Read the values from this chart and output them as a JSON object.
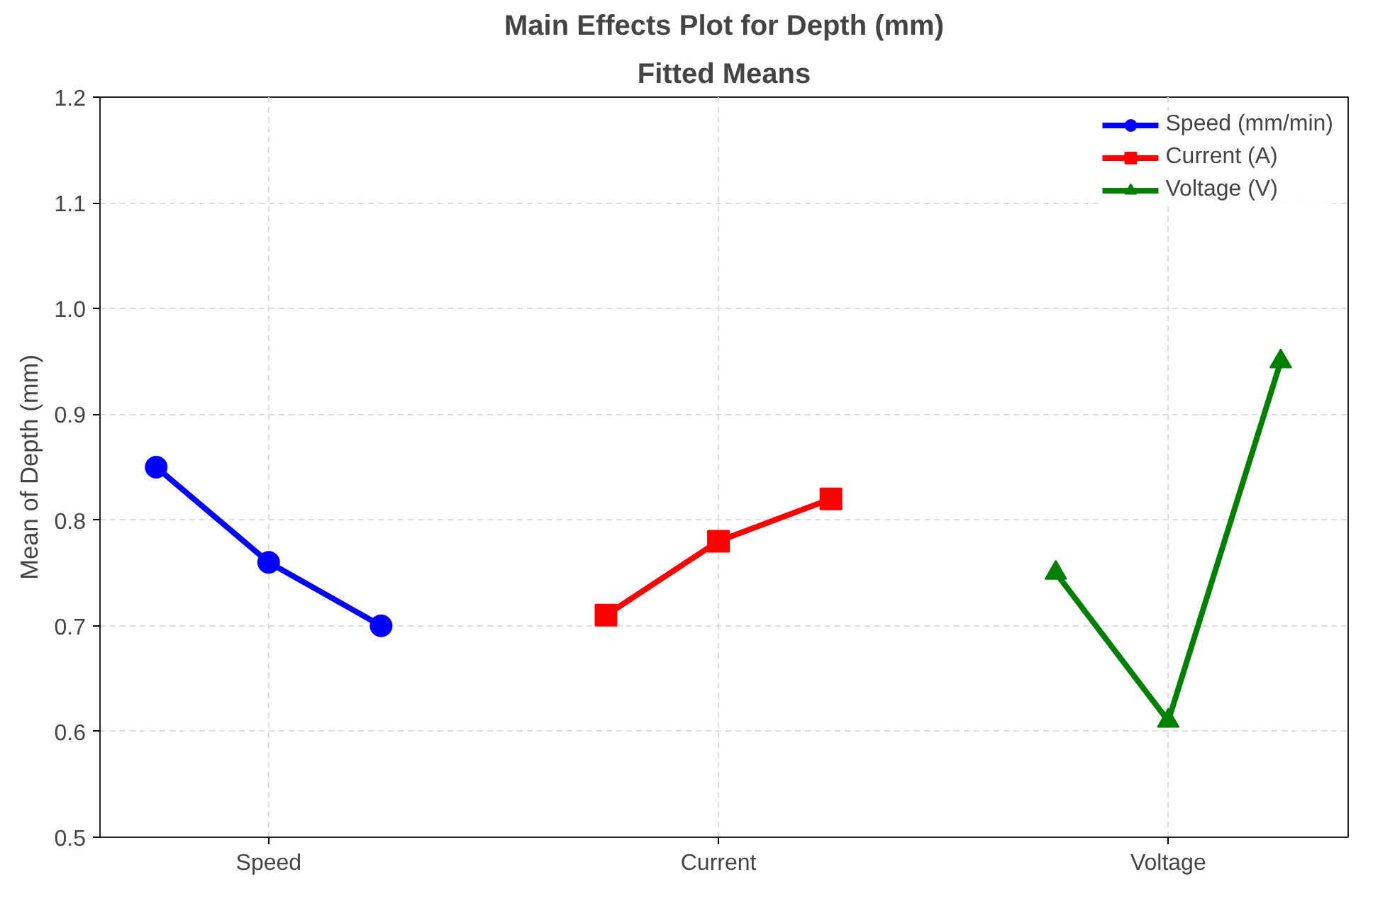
{
  "chart_data": {
    "type": "line",
    "title": "Main Effects Plot for Depth (mm)",
    "subtitle": "Fitted Means",
    "ylabel": "Mean of Depth (mm)",
    "categories": [
      null,
      "Speed",
      null,
      null,
      null,
      "Current",
      null,
      null,
      null,
      "Voltage",
      null
    ],
    "series": [
      {
        "name": "Speed (mm/min)",
        "color": "#0000ff",
        "marker": "circle",
        "values": [
          0.85,
          0.76,
          0.7,
          null,
          null,
          null,
          null,
          null,
          null,
          null,
          null
        ]
      },
      {
        "name": "Current (A)",
        "color": "#ff0000",
        "marker": "square",
        "values": [
          null,
          null,
          null,
          null,
          0.71,
          0.78,
          0.82,
          null,
          null,
          null,
          null
        ]
      },
      {
        "name": "Voltage (V)",
        "color": "#008000",
        "marker": "triangle",
        "values": [
          null,
          null,
          null,
          null,
          null,
          null,
          null,
          null,
          0.75,
          0.61,
          0.95
        ]
      }
    ],
    "ylim": [
      0.5,
      1.2
    ],
    "yticks": [
      0.5,
      0.6,
      0.7,
      0.8,
      0.9,
      {
        "value": 1.0,
        "label": "1.0"
      },
      1.1,
      1.2
    ],
    "grid": true,
    "legend": "top right",
    "line_style": "solid"
  }
}
